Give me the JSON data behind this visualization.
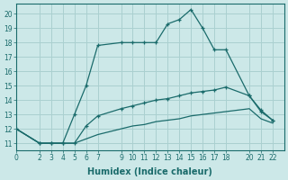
{
  "xlabel": "Humidex (Indice chaleur)",
  "bg_color": "#cce8e8",
  "line_color": "#1a6b6b",
  "grid_color": "#aad0d0",
  "xlim": [
    0,
    23
  ],
  "ylim": [
    10.5,
    20.7
  ],
  "xticks": [
    0,
    2,
    3,
    4,
    5,
    6,
    7,
    9,
    10,
    11,
    12,
    13,
    14,
    15,
    16,
    17,
    18,
    20,
    21,
    22
  ],
  "yticks": [
    11,
    12,
    13,
    14,
    15,
    16,
    17,
    18,
    19,
    20
  ],
  "line1_x": [
    0,
    2,
    3,
    4,
    5,
    6,
    7,
    9,
    10,
    11,
    12,
    13,
    14,
    15,
    16,
    17,
    18,
    20,
    21,
    22
  ],
  "line1_y": [
    12.0,
    11.0,
    11.0,
    11.0,
    13.0,
    15.0,
    17.8,
    18.0,
    18.0,
    18.0,
    18.0,
    19.3,
    19.6,
    20.3,
    19.0,
    17.5,
    17.5,
    14.3,
    13.2,
    12.6
  ],
  "line2_x": [
    0,
    2,
    3,
    4,
    5,
    6,
    7,
    9,
    10,
    11,
    12,
    13,
    14,
    15,
    16,
    17,
    18,
    20,
    21,
    22
  ],
  "line2_y": [
    12.0,
    11.0,
    11.0,
    11.0,
    11.0,
    12.2,
    12.9,
    13.4,
    13.6,
    13.8,
    14.0,
    14.1,
    14.3,
    14.5,
    14.6,
    14.7,
    14.9,
    14.3,
    13.3,
    12.6
  ],
  "line3_x": [
    0,
    2,
    3,
    4,
    5,
    6,
    7,
    9,
    10,
    11,
    12,
    13,
    14,
    15,
    16,
    17,
    18,
    20,
    21,
    22
  ],
  "line3_y": [
    12.0,
    11.0,
    11.0,
    11.0,
    11.0,
    11.3,
    11.6,
    12.0,
    12.2,
    12.3,
    12.5,
    12.6,
    12.7,
    12.9,
    13.0,
    13.1,
    13.2,
    13.4,
    12.7,
    12.4
  ],
  "xlabel_fontsize": 7,
  "tick_fontsize": 5.5
}
